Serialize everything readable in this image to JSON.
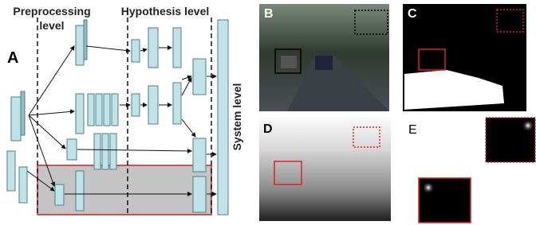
{
  "panel_a": {
    "label": "A",
    "header_preprocessing": [
      "Preprocessing",
      "level"
    ],
    "header_hypothesis": "Hypothesis level",
    "system_level": "System level"
  },
  "panel_b": {
    "label": "B"
  },
  "panel_c": {
    "label": "C"
  },
  "panel_d": {
    "label": "D"
  },
  "panel_e": {
    "label": "E"
  }
}
